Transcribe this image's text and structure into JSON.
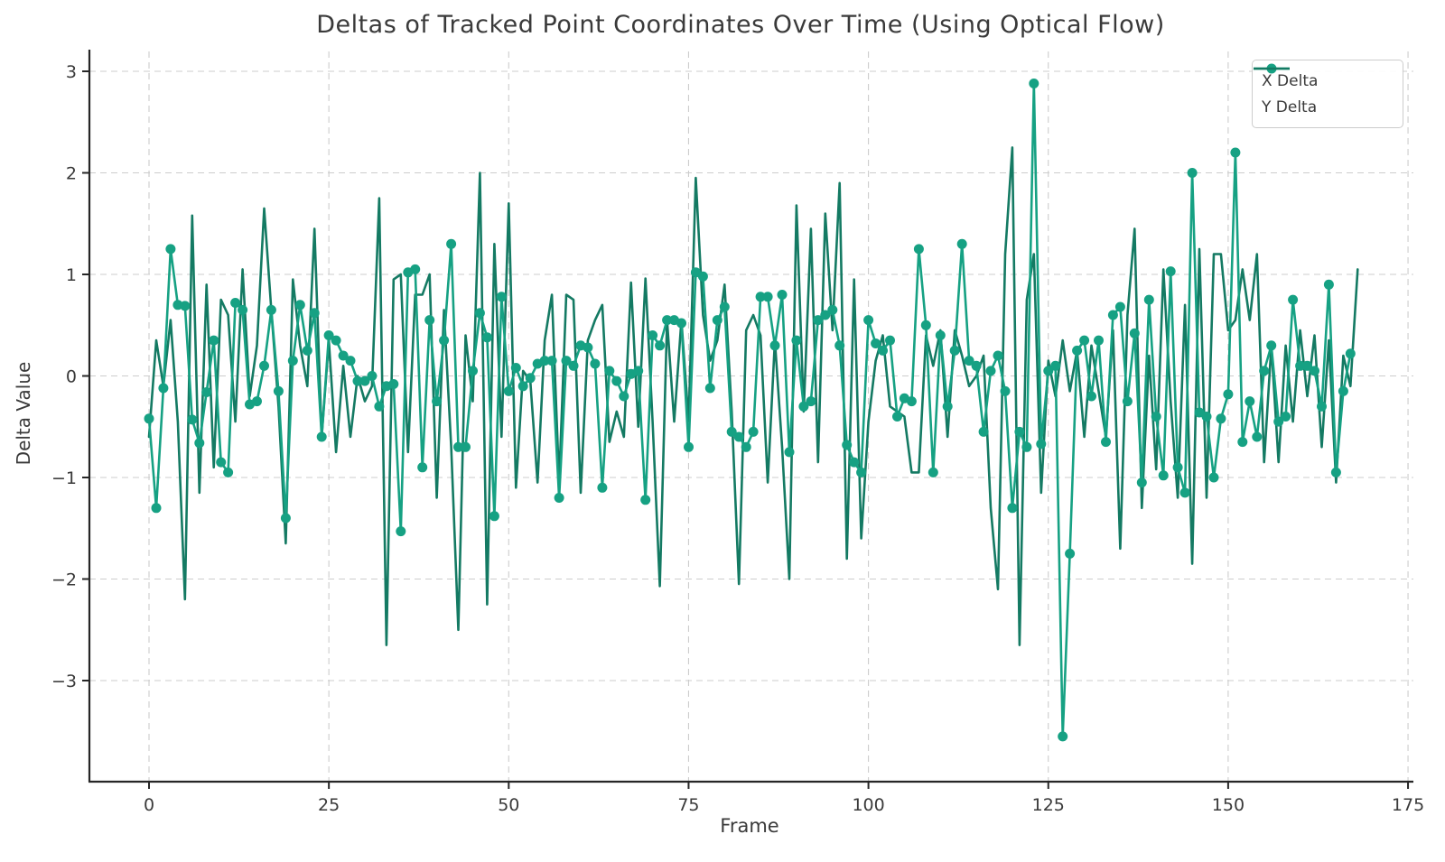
{
  "title": "Deltas of Tracked Point Coordinates Over Time (Using Optical Flow)",
  "colors": {
    "x_delta": "#16a183",
    "y_delta": "#147a63",
    "text": "#3a3a3a",
    "spine": "#262626",
    "grid": "#cccccc",
    "legend_border": "#cccccc"
  },
  "chart_data": {
    "type": "line",
    "title": "Deltas of Tracked Point Coordinates Over Time (Using Optical Flow)",
    "xlabel": "Frame",
    "ylabel": "Delta Value",
    "xlim": [
      -8,
      183
    ],
    "ylim": [
      -3.95,
      3.2
    ],
    "xticks": [
      "0",
      "25",
      "50",
      "75",
      "100",
      "125",
      "150",
      "175"
    ],
    "xtick_values": [
      0,
      25,
      50,
      75,
      100,
      125,
      150,
      175
    ],
    "yticks": [
      "3",
      "2",
      "1",
      "0",
      "−1",
      "−2",
      "−3"
    ],
    "ytick_values": [
      3,
      2,
      1,
      0,
      -1,
      -2,
      -3
    ],
    "grid": true,
    "legend_position": "upper right",
    "x_start": 0,
    "x_step": 1,
    "series": [
      {
        "name": "X Delta",
        "marker": "circle",
        "color": "#16a183",
        "values": [
          -0.42,
          -1.3,
          -0.12,
          1.25,
          0.7,
          0.69,
          -0.43,
          -0.66,
          -0.16,
          0.35,
          -0.85,
          -0.95,
          0.72,
          0.65,
          -0.28,
          -0.25,
          0.1,
          0.65,
          -0.15,
          -1.4,
          0.15,
          0.7,
          0.25,
          0.62,
          -0.6,
          0.4,
          0.35,
          0.2,
          0.15,
          -0.05,
          -0.05,
          0,
          -0.3,
          -0.1,
          -0.08,
          -1.53,
          1.02,
          1.05,
          -0.9,
          0.55,
          -0.25,
          0.35,
          1.3,
          -0.7,
          -0.7,
          0.05,
          0.62,
          0.38,
          -1.38,
          0.78,
          -0.15,
          0.08,
          -0.1,
          -0.02,
          0.12,
          0.15,
          0.15,
          -1.2,
          0.15,
          0.1,
          0.3,
          0.28,
          0.12,
          -1.1,
          0.05,
          -0.05,
          -0.2,
          0.02,
          0.05,
          -1.22,
          0.4,
          0.3,
          0.55,
          0.55,
          0.52,
          -0.7,
          1.02,
          0.98,
          -0.12,
          0.55,
          0.68,
          -0.55,
          -0.6,
          -0.7,
          -0.55,
          0.78,
          0.78,
          0.3,
          0.8,
          -0.75,
          0.35,
          -0.3,
          -0.25,
          0.55,
          0.6,
          0.65,
          0.3,
          -0.68,
          -0.85,
          -0.95,
          0.55,
          0.32,
          0.25,
          0.35,
          -0.4,
          -0.22,
          -0.25,
          1.25,
          0.5,
          -0.95,
          0.4,
          -0.3,
          0.25,
          1.3,
          0.15,
          0.1,
          -0.55,
          0.05,
          0.2,
          -0.15,
          -1.3,
          -0.55,
          -0.7,
          2.88,
          -0.67,
          0.05,
          0.1,
          -3.55,
          -1.75,
          0.25,
          0.35,
          -0.2,
          0.35,
          -0.65,
          0.6,
          0.68,
          -0.25,
          0.42,
          -1.05,
          0.75,
          -0.4,
          -0.98,
          1.03,
          -0.9,
          -1.15,
          2,
          -0.36,
          -0.4,
          -1,
          -0.42,
          -0.18,
          2.2,
          -0.65,
          -0.25,
          -0.6,
          0.05,
          0.3,
          -0.45,
          -0.4,
          0.75,
          0.1,
          0.1,
          0.05,
          -0.3,
          0.9,
          -0.95,
          -0.15,
          0.22
        ]
      },
      {
        "name": "Y Delta",
        "marker": "none",
        "color": "#147a63",
        "values": [
          -0.6,
          0.35,
          -0.1,
          0.55,
          -0.45,
          -2.2,
          1.58,
          -1.15,
          0.9,
          -0.9,
          0.75,
          0.6,
          -0.45,
          1.05,
          -0.2,
          0.3,
          1.65,
          0.65,
          -0.3,
          -1.65,
          0.95,
          0.3,
          -0.1,
          1.45,
          -0.6,
          0.35,
          -0.75,
          0.1,
          -0.6,
          0,
          -0.25,
          -0.1,
          1.75,
          -2.65,
          0.95,
          1,
          -0.75,
          0.8,
          0.8,
          1,
          -1.2,
          0.65,
          -0.7,
          -2.5,
          0.4,
          -0.25,
          2,
          -2.25,
          1.3,
          -0.6,
          1.7,
          -1.1,
          0.05,
          -0.05,
          -1.05,
          0.35,
          0.8,
          -1.05,
          0.8,
          0.75,
          -1.15,
          0.35,
          0.55,
          0.7,
          -0.65,
          -0.35,
          -0.6,
          0.92,
          -0.5,
          0.96,
          -0.45,
          -2.07,
          0.55,
          -0.45,
          0.55,
          -0.45,
          1.95,
          0.6,
          0.15,
          0.35,
          0.9,
          -0.35,
          -2.05,
          0.45,
          0.6,
          0.4,
          -1.05,
          0.35,
          -0.7,
          -2,
          1.68,
          -0.35,
          1.45,
          -0.85,
          1.6,
          0.45,
          1.9,
          -1.8,
          0.95,
          -1.6,
          -0.45,
          0.15,
          0.4,
          -0.3,
          -0.35,
          -0.4,
          -0.95,
          -0.95,
          0.4,
          0.1,
          0.45,
          -0.6,
          0.45,
          0.2,
          -0.1,
          0,
          0.2,
          -1.3,
          -2.1,
          1.2,
          2.25,
          -2.65,
          0.75,
          1.2,
          -1.15,
          0.15,
          -0.2,
          0.35,
          -0.15,
          0.25,
          -0.6,
          0.3,
          -0.15,
          -0.6,
          0.45,
          -1.7,
          0.6,
          1.45,
          -1.3,
          0.2,
          -0.92,
          1.05,
          -0.25,
          -1.2,
          0.7,
          -1.85,
          1.25,
          -1.2,
          1.2,
          1.2,
          0.45,
          0.55,
          1.05,
          0.55,
          1.2,
          -0.85,
          0.3,
          -0.85,
          0.3,
          -0.45,
          0.45,
          -0.2,
          0.4,
          -0.7,
          0.35,
          -1.05,
          0.2,
          -0.1,
          1.05
        ]
      }
    ]
  },
  "legend": {
    "items": [
      {
        "label": "X Delta"
      },
      {
        "label": "Y Delta"
      }
    ]
  },
  "axis": {
    "xlabel": "Frame",
    "ylabel": "Delta Value"
  }
}
